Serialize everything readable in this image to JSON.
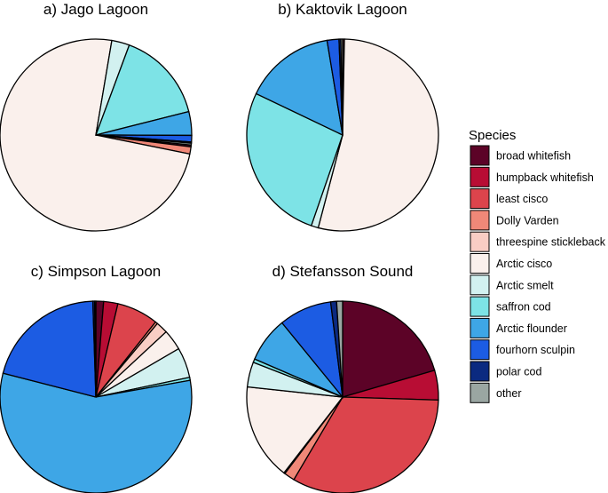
{
  "legend": {
    "title": "Species",
    "species": [
      {
        "name": "broad whitefish",
        "color": "#5c0327"
      },
      {
        "name": "humpback whitefish",
        "color": "#b80d34"
      },
      {
        "name": "least cisco",
        "color": "#dc444c"
      },
      {
        "name": "Dolly Varden",
        "color": "#f08878"
      },
      {
        "name": "threespine stickleback",
        "color": "#f9cdc4"
      },
      {
        "name": "Arctic cisco",
        "color": "#faf0ec"
      },
      {
        "name": "Arctic smelt",
        "color": "#d2f1f0"
      },
      {
        "name": "saffron cod",
        "color": "#7de3e6"
      },
      {
        "name": "Arctic flounder",
        "color": "#3ea6e6"
      },
      {
        "name": "fourhorn sculpin",
        "color": "#1c5ce3"
      },
      {
        "name": "polar cod",
        "color": "#0b2a80"
      },
      {
        "name": "other",
        "color": "#9aa6a2"
      }
    ]
  },
  "chart_data": [
    {
      "type": "pie",
      "title": "a) Jago Lagoon",
      "categories": [
        "broad whitefish",
        "humpback whitefish",
        "least cisco",
        "Dolly Varden",
        "threespine stickleback",
        "Arctic cisco",
        "Arctic smelt",
        "saffron cod",
        "Arctic flounder",
        "fourhorn sculpin",
        "polar cod",
        "other"
      ],
      "values": [
        0.3,
        0.0,
        0.0,
        1.2,
        0.0,
        74.5,
        3.0,
        15.4,
        4.0,
        1.1,
        0.2,
        0.3
      ]
    },
    {
      "type": "pie",
      "title": "b) Kaktovik Lagoon",
      "categories": [
        "broad whitefish",
        "humpback whitefish",
        "least cisco",
        "Dolly Varden",
        "threespine stickleback",
        "Arctic cisco",
        "Arctic smelt",
        "saffron cod",
        "Arctic flounder",
        "fourhorn sculpin",
        "polar cod",
        "other"
      ],
      "values": [
        0.3,
        0.0,
        0.0,
        0.0,
        0.0,
        53.8,
        1.2,
        26.8,
        15.3,
        2.0,
        0.3,
        0.3
      ]
    },
    {
      "type": "pie",
      "title": "c) Simpson Lagoon",
      "categories": [
        "broad whitefish",
        "humpback whitefish",
        "least cisco",
        "Dolly Varden",
        "threespine stickleback",
        "Arctic cisco",
        "Arctic smelt",
        "saffron cod",
        "Arctic flounder",
        "fourhorn sculpin",
        "polar cod",
        "other"
      ],
      "values": [
        1.3,
        2.4,
        7.0,
        0.4,
        2.0,
        3.5,
        5.1,
        0.5,
        56.8,
        20.5,
        0.3,
        0.2
      ]
    },
    {
      "type": "pie",
      "title": "d) Stefansson Sound",
      "categories": [
        "broad whitefish",
        "humpback whitefish",
        "least cisco",
        "Dolly Varden",
        "threespine stickleback",
        "Arctic cisco",
        "Arctic smelt",
        "saffron cod",
        "Arctic flounder",
        "fourhorn sculpin",
        "polar cod",
        "other"
      ],
      "values": [
        20.5,
        5.0,
        33.0,
        1.8,
        0.2,
        16.2,
        4.2,
        0.6,
        7.6,
        8.9,
        1.0,
        1.0
      ]
    }
  ]
}
